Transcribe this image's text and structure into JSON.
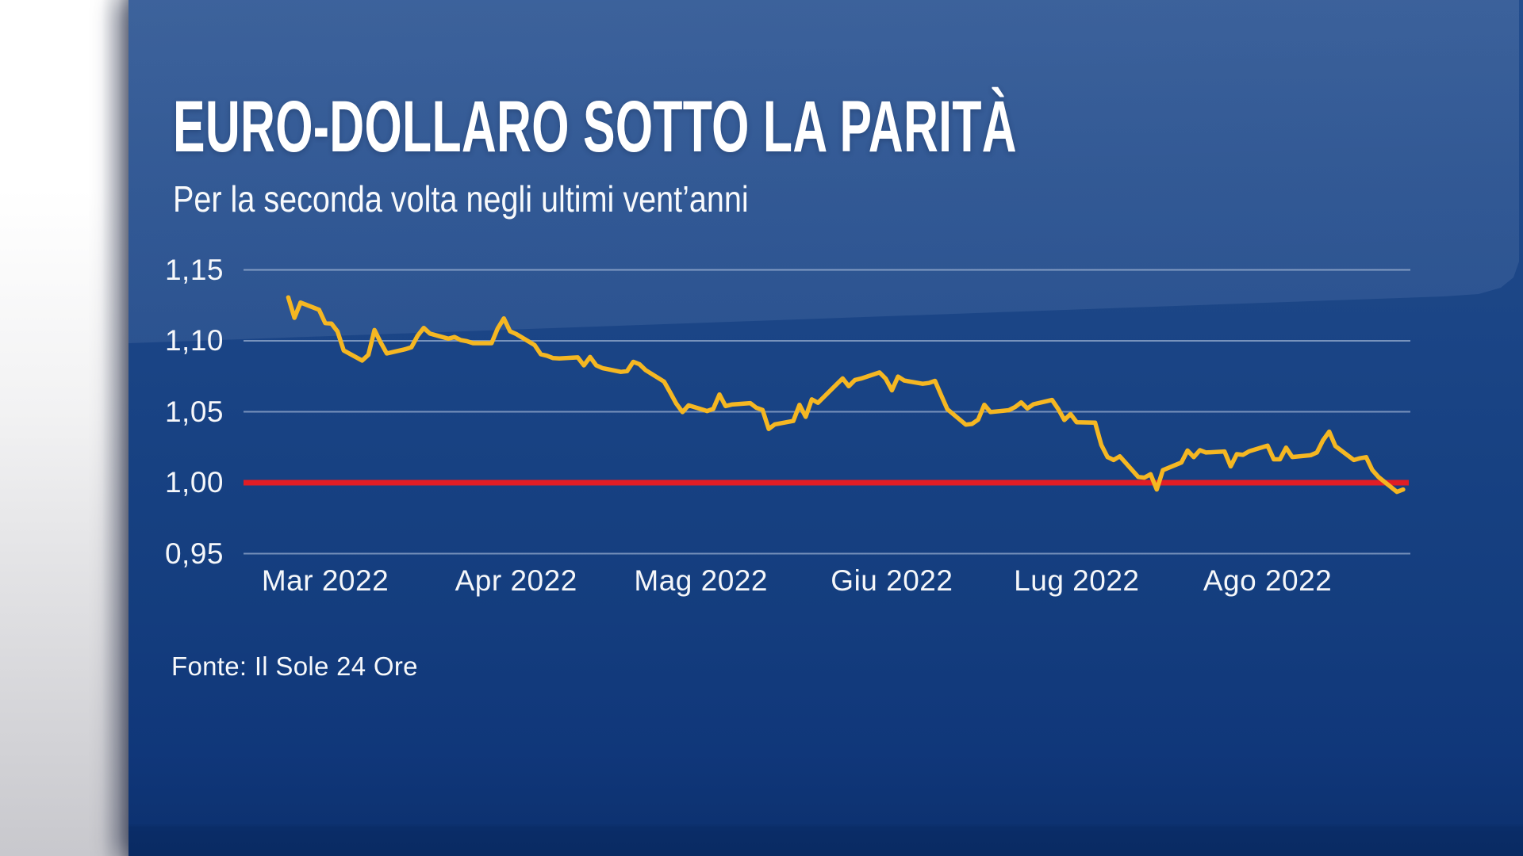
{
  "header": {
    "title": "EURO-DOLLARO SOTTO LA PARITÀ",
    "subtitle": "Per la seconda volta negli ultimi vent’anni"
  },
  "footer": {
    "source": "Fonte: Il Sole 24 Ore"
  },
  "colors": {
    "line_yellow": "#F5B722",
    "parity_red": "#E11D25",
    "gridline": "rgba(214,226,244,0.50)",
    "panel_blue_top": "#2d5494",
    "panel_blue_base": "#174182",
    "panel_blue_bottom": "#092a62",
    "left_strip_top": "#ffffff",
    "left_strip_bottom": "#c8c8cd",
    "text_white": "#ffffff"
  },
  "chart_data": {
    "type": "line",
    "title": "EURO-DOLLARO SOTTO LA PARITÀ",
    "subtitle": "Per la seconda volta negli ultimi vent’anni",
    "xlabel": "",
    "ylabel": "",
    "grid": "horizontal",
    "legend": "none",
    "y_axis": {
      "tick_labels": [
        "1,15",
        "1,10",
        "1,05",
        "1,00",
        "0,95"
      ],
      "tick_values": [
        1.15,
        1.1,
        1.05,
        1.0,
        0.95
      ],
      "range": [
        0.95,
        1.15
      ]
    },
    "x_axis": {
      "tick_labels": [
        "Mar 2022",
        "Apr 2022",
        "Mag 2022",
        "Giu 2022",
        "Lug 2022",
        "Ago 2022"
      ],
      "tick_day_offsets": [
        6,
        37,
        67,
        98,
        128,
        159
      ],
      "start_day_offset": 0,
      "end_day_offset": 181
    },
    "reference_line": {
      "value": 1.0,
      "meaning": "parità euro-dollaro"
    },
    "series": [
      {
        "name": "Cambio euro-dollaro",
        "points": [
          [
            0,
            1.1306
          ],
          [
            1,
            1.1162
          ],
          [
            2,
            1.127
          ],
          [
            5,
            1.1219
          ],
          [
            6,
            1.1125
          ],
          [
            7,
            1.1122
          ],
          [
            8,
            1.1066
          ],
          [
            9,
            1.0932
          ],
          [
            12,
            1.0861
          ],
          [
            13,
            1.0901
          ],
          [
            14,
            1.1076
          ],
          [
            15,
            1.0989
          ],
          [
            16,
            1.0911
          ],
          [
            19,
            1.0941
          ],
          [
            20,
            1.0955
          ],
          [
            21,
            1.1036
          ],
          [
            22,
            1.1091
          ],
          [
            23,
            1.1051
          ],
          [
            26,
            1.1015
          ],
          [
            27,
            1.1027
          ],
          [
            28,
            1.1005
          ],
          [
            29,
            1.0997
          ],
          [
            30,
            1.0983
          ],
          [
            33,
            1.0983
          ],
          [
            34,
            1.1087
          ],
          [
            35,
            1.1158
          ],
          [
            36,
            1.1067
          ],
          [
            37,
            1.1048
          ],
          [
            40,
            1.097
          ],
          [
            41,
            1.0905
          ],
          [
            42,
            1.0895
          ],
          [
            43,
            1.0878
          ],
          [
            44,
            1.0876
          ],
          [
            47,
            1.0883
          ],
          [
            48,
            1.0827
          ],
          [
            49,
            1.0886
          ],
          [
            50,
            1.0827
          ],
          [
            51,
            1.0808
          ],
          [
            54,
            1.0781
          ],
          [
            55,
            1.0786
          ],
          [
            56,
            1.0852
          ],
          [
            57,
            1.0836
          ],
          [
            58,
            1.0794
          ],
          [
            61,
            1.0713
          ],
          [
            62,
            1.0637
          ],
          [
            63,
            1.0557
          ],
          [
            64,
            1.0498
          ],
          [
            65,
            1.0545
          ],
          [
            68,
            1.0505
          ],
          [
            69,
            1.052
          ],
          [
            70,
            1.0622
          ],
          [
            71,
            1.054
          ],
          [
            72,
            1.0551
          ],
          [
            75,
            1.0561
          ],
          [
            76,
            1.0528
          ],
          [
            77,
            1.0513
          ],
          [
            78,
            1.0379
          ],
          [
            79,
            1.0411
          ],
          [
            82,
            1.0435
          ],
          [
            83,
            1.0549
          ],
          [
            84,
            1.0464
          ],
          [
            85,
            1.0587
          ],
          [
            86,
            1.0563
          ],
          [
            89,
            1.0692
          ],
          [
            90,
            1.0735
          ],
          [
            91,
            1.068
          ],
          [
            92,
            1.0724
          ],
          [
            93,
            1.0734
          ],
          [
            96,
            1.0777
          ],
          [
            97,
            1.0733
          ],
          [
            98,
            1.0651
          ],
          [
            99,
            1.0748
          ],
          [
            100,
            1.072
          ],
          [
            103,
            1.0697
          ],
          [
            104,
            1.0703
          ],
          [
            105,
            1.0718
          ],
          [
            106,
            1.0617
          ],
          [
            107,
            1.0518
          ],
          [
            110,
            1.0409
          ],
          [
            111,
            1.0414
          ],
          [
            112,
            1.0444
          ],
          [
            113,
            1.0549
          ],
          [
            114,
            1.0498
          ],
          [
            117,
            1.0511
          ],
          [
            118,
            1.0533
          ],
          [
            119,
            1.0566
          ],
          [
            120,
            1.0523
          ],
          [
            121,
            1.0553
          ],
          [
            124,
            1.0583
          ],
          [
            125,
            1.052
          ],
          [
            126,
            1.0442
          ],
          [
            127,
            1.0484
          ],
          [
            128,
            1.0426
          ],
          [
            131,
            1.0423
          ],
          [
            132,
            1.0266
          ],
          [
            133,
            1.0181
          ],
          [
            134,
            1.016
          ],
          [
            135,
            1.0186
          ],
          [
            138,
            1.004
          ],
          [
            139,
            1.0036
          ],
          [
            140,
            1.006
          ],
          [
            141,
            0.9952
          ],
          [
            142,
            1.0088
          ],
          [
            145,
            1.0142
          ],
          [
            146,
            1.0227
          ],
          [
            147,
            1.018
          ],
          [
            148,
            1.0229
          ],
          [
            149,
            1.0213
          ],
          [
            152,
            1.022
          ],
          [
            153,
            1.0115
          ],
          [
            154,
            1.0201
          ],
          [
            155,
            1.0196
          ],
          [
            156,
            1.0221
          ],
          [
            159,
            1.0261
          ],
          [
            160,
            1.0165
          ],
          [
            161,
            1.0165
          ],
          [
            162,
            1.0247
          ],
          [
            163,
            1.0181
          ],
          [
            166,
            1.0194
          ],
          [
            167,
            1.0213
          ],
          [
            168,
            1.0299
          ],
          [
            169,
            1.036
          ],
          [
            170,
            1.0258
          ],
          [
            173,
            1.016
          ],
          [
            174,
            1.0172
          ],
          [
            175,
            1.018
          ],
          [
            176,
            1.009
          ],
          [
            177,
            1.004
          ],
          [
            180,
            0.9935
          ],
          [
            181,
            0.9952
          ]
        ]
      }
    ]
  }
}
